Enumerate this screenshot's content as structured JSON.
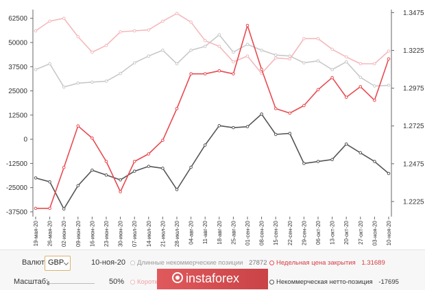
{
  "chart_data": {
    "type": "line",
    "x": [
      "19-мая-20",
      "26-мая-20",
      "02-июн-20",
      "09-июн-20",
      "16-июн-20",
      "23-июн-20",
      "30-июн-20",
      "07-июл-20",
      "14-июл-20",
      "21-июл-20",
      "28-июл-20",
      "04-авг-20",
      "11-авг-20",
      "18-авг-20",
      "25-авг-20",
      "01-сен-20",
      "08-сен-20",
      "15-сен-20",
      "22-сен-20",
      "29-сен-20",
      "06-окт-20",
      "13-окт-20",
      "20-окт-20",
      "27-окт-20",
      "03-ноя-20",
      "10-ноя-20"
    ],
    "y_left_ticks": [
      62500,
      50000,
      37500,
      25000,
      12500,
      0,
      -12500,
      -25000,
      -37500
    ],
    "y_left_tick_labels": [
      "62500",
      "50000",
      "37500",
      "25000",
      "12500",
      "0",
      "-12500",
      "-25000",
      "-37500"
    ],
    "ylim_left": [
      -40000,
      67000
    ],
    "y_right_ticks": [
      1.3475,
      1.3225,
      1.2975,
      1.2725,
      1.2475,
      1.2225
    ],
    "y_right_tick_labels": [
      "1.3475",
      "1.3225",
      "1.2975",
      "1.2725",
      "1.2475",
      "1.2225"
    ],
    "ylim_right": [
      1.2125,
      1.3495
    ],
    "grid": false,
    "series": [
      {
        "name": "Длинные некоммерческие позиции",
        "axis": "left",
        "color": "#c8c8c8",
        "values": [
          36000,
          39000,
          27000,
          29000,
          29500,
          30000,
          34000,
          39500,
          43000,
          46000,
          39000,
          46000,
          48000,
          54000,
          45000,
          49000,
          46000,
          43500,
          43000,
          39500,
          40500,
          36000,
          40000,
          32000,
          27500,
          27872
        ]
      },
      {
        "name": "Короткие некоммерческие позиции",
        "axis": "left",
        "color": "#f4b8bc",
        "values": [
          56000,
          61000,
          62500,
          53000,
          45000,
          48500,
          55500,
          56000,
          56500,
          61000,
          65000,
          60500,
          51000,
          48000,
          40000,
          43000,
          34000,
          42000,
          41500,
          52000,
          52000,
          46500,
          42500,
          39000,
          39000,
          45567
        ]
      },
      {
        "name": "Недельная цена закрытия",
        "axis": "right",
        "color": "#e8494f",
        "values": [
          1.218,
          1.218,
          1.245,
          1.2725,
          1.2645,
          1.249,
          1.229,
          1.249,
          1.254,
          1.263,
          1.284,
          1.307,
          1.307,
          1.309,
          1.307,
          1.339,
          1.31,
          1.284,
          1.281,
          1.286,
          1.2965,
          1.3045,
          1.2915,
          1.2985,
          1.2895,
          1.31689
        ]
      },
      {
        "name": "Некоммерческая нетто-позиция",
        "axis": "left",
        "color": "#555555",
        "values": [
          -20000,
          -22000,
          -36000,
          -24000,
          -16000,
          -18500,
          -21000,
          -16500,
          -14000,
          -15000,
          -26000,
          -14500,
          -3000,
          7000,
          6000,
          6500,
          13000,
          2500,
          3000,
          -12500,
          -11500,
          -10500,
          -2500,
          -7000,
          -11500,
          -17695
        ]
      }
    ]
  },
  "footer": {
    "currency_label": "Валюта:",
    "currency_value": "GBP",
    "date": "10-ноя-20",
    "long_label": "Длинные некоммерческие позиции",
    "long_value": "27872",
    "close_label": "Недельная цена закрытия",
    "close_value": "1.31689",
    "scale_label": "Масштаб:",
    "scale_value": "50%",
    "short_label": "Коротк",
    "net_label": "Некоммерческая нетто-позиция",
    "net_value": "-17695",
    "brand": "instaforex"
  },
  "colors": {
    "long": "#c8c8c8",
    "short": "#f4b8bc",
    "price": "#e8494f",
    "net": "#555555",
    "brand": "#d84c50"
  }
}
